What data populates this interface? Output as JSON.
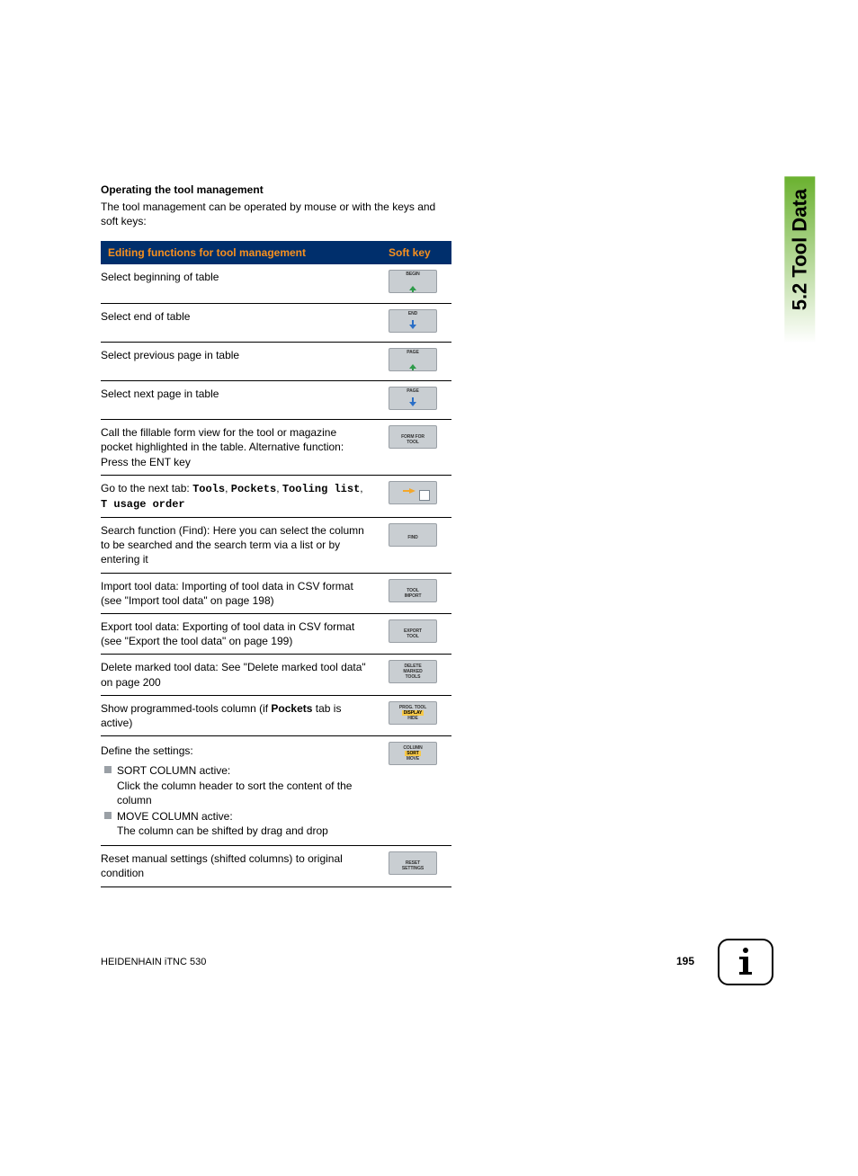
{
  "heading": "Operating the tool management",
  "intro": "The tool management can be operated by mouse or with the keys and soft keys:",
  "side_tab": "5.2 Tool Data",
  "footer_left": "HEIDENHAIN iTNC 530",
  "page_number": "195",
  "table": {
    "header_left": "Editing functions for tool management",
    "header_right": "Soft key",
    "rows": [
      {
        "desc_html": "Select beginning of table",
        "sk": {
          "type": "arrow_up",
          "label": "BEGIN"
        }
      },
      {
        "desc_html": "Select end of table",
        "sk": {
          "type": "arrow_down",
          "label": "END"
        }
      },
      {
        "desc_html": "Select previous page in table",
        "sk": {
          "type": "arrow_up",
          "label": "PAGE"
        }
      },
      {
        "desc_html": "Select next page in table",
        "sk": {
          "type": "arrow_down",
          "label": "PAGE"
        }
      },
      {
        "desc_html": "Call the fillable form view for the tool or magazine pocket highlighted in the table. Alternative function: Press the ENT key",
        "sk": {
          "type": "stack2",
          "lines": [
            "FORM FOR",
            "TOOL"
          ]
        }
      },
      {
        "desc_html": "Go to the next tab: <span class=\"mono\">Tools</span>, <span class=\"mono\">Pockets</span>, <span class=\"mono\">Tooling list</span>, <span class=\"mono\">T usage order</span>",
        "sk": {
          "type": "arrow_right_doc"
        }
      },
      {
        "desc_html": "Search function (Find): Here you can select the column to be searched and the search term via a list or by entering it",
        "sk": {
          "type": "stack1",
          "lines": [
            "FIND"
          ]
        }
      },
      {
        "desc_html": "Import tool data: Importing of tool data in CSV format (see \"Import tool data\" on page 198)",
        "sk": {
          "type": "stack2",
          "lines": [
            "TOOL",
            "IMPORT"
          ]
        }
      },
      {
        "desc_html": "Export tool data: Exporting of tool data in CSV format (see \"Export the tool data\" on page 199)",
        "sk": {
          "type": "stack2",
          "lines": [
            "EXPORT",
            "TOOL"
          ]
        }
      },
      {
        "desc_html": "Delete marked tool data: See \"Delete marked tool data\" on page 200",
        "sk": {
          "type": "stack3",
          "lines": [
            "DELETE",
            "MARKED",
            "TOOLS"
          ]
        }
      },
      {
        "desc_html": "Show programmed-tools column (if <span class=\"bold\">Pockets</span> tab is active)",
        "sk": {
          "type": "stack3yellow",
          "lines": [
            "PROG. TOOL",
            "DISPLAY",
            "HIDE"
          ]
        }
      },
      {
        "desc_html": "__settings__",
        "sk": {
          "type": "stack3yellow",
          "lines": [
            "COLUMN",
            "SORT",
            "MOVE"
          ]
        }
      },
      {
        "desc_html": "Reset manual settings (shifted columns) to original condition",
        "sk": {
          "type": "stack2",
          "lines": [
            "RESET",
            "SETTINGS"
          ]
        }
      }
    ]
  },
  "settings": {
    "intro": "Define the settings:",
    "items": [
      {
        "title": "SORT COLUMN active:",
        "body": "Click the column header to sort the content of the column"
      },
      {
        "title": "MOVE COLUMN active:",
        "body": "The column can be shifted by drag and drop"
      }
    ]
  },
  "colors": {
    "header_bg": "#002f6c",
    "header_fg": "#f7901e",
    "softkey_bg": "#c9ced2",
    "softkey_border": "#999fa5",
    "arrow_up_color": "#2e9b4a",
    "arrow_down_color": "#2a6fc7",
    "arrow_right_color": "#f3a72b",
    "side_gradient_end": "#6ab12f",
    "bullet_color": "#9aa0a6"
  }
}
